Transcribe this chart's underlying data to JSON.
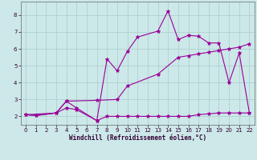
{
  "xlabel": "Windchill (Refroidissement éolien,°C)",
  "bg_color": "#cce8e8",
  "grid_color": "#aacccc",
  "line_color": "#990099",
  "xlim": [
    -0.5,
    22.5
  ],
  "ylim": [
    1.5,
    8.8
  ],
  "xticks": [
    0,
    1,
    2,
    3,
    4,
    5,
    6,
    7,
    8,
    9,
    10,
    11,
    12,
    13,
    14,
    15,
    16,
    17,
    18,
    19,
    20,
    21,
    22
  ],
  "yticks": [
    2,
    3,
    4,
    5,
    6,
    7,
    8
  ],
  "series": [
    {
      "x": [
        0,
        1,
        3,
        4,
        5,
        7,
        8,
        9,
        10,
        11,
        13,
        14,
        15,
        16,
        17,
        18,
        19,
        20,
        21,
        22
      ],
      "y": [
        2.1,
        2.05,
        2.2,
        2.9,
        2.5,
        1.75,
        5.4,
        4.7,
        5.85,
        6.7,
        7.05,
        8.25,
        6.55,
        6.8,
        6.75,
        6.35,
        6.35,
        4.0,
        5.75,
        2.2
      ]
    },
    {
      "x": [
        0,
        3,
        4,
        7,
        9,
        10,
        13,
        15,
        16,
        17,
        18,
        19,
        20,
        21,
        22
      ],
      "y": [
        2.1,
        2.2,
        2.9,
        2.95,
        3.0,
        3.8,
        4.5,
        5.5,
        5.6,
        5.7,
        5.8,
        5.9,
        6.0,
        6.1,
        6.3
      ]
    },
    {
      "x": [
        0,
        1,
        3,
        4,
        5,
        7,
        8,
        9,
        10,
        11,
        12,
        13,
        14,
        15,
        16,
        17,
        18,
        19,
        20,
        21,
        22
      ],
      "y": [
        2.1,
        2.05,
        2.2,
        2.5,
        2.4,
        1.75,
        2.0,
        2.0,
        2.0,
        2.0,
        2.0,
        2.0,
        2.0,
        2.0,
        2.0,
        2.1,
        2.15,
        2.2,
        2.2,
        2.2,
        2.2
      ]
    }
  ]
}
